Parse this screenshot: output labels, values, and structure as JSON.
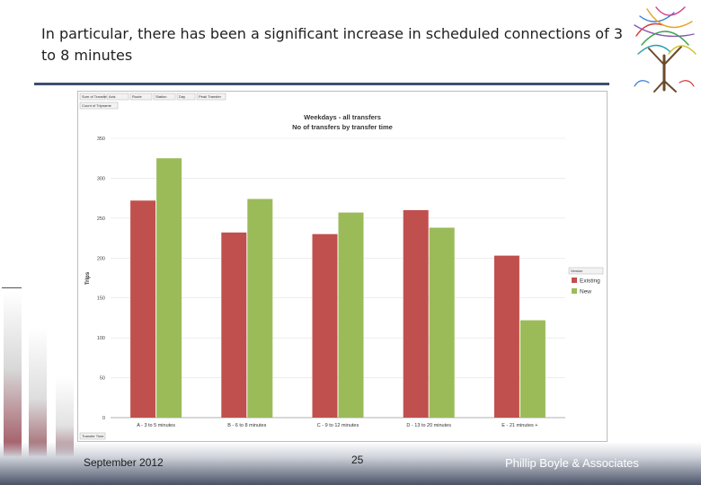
{
  "slide": {
    "title": "In particular, there has been a significant increase in scheduled connections of 3 to 8 minutes",
    "footer_date": "September 2012",
    "page_number": "25",
    "organization": "Phillip Boyle & Associates"
  },
  "pivot_controls": {
    "filters": [
      "Sum of TransferTime",
      "Axis",
      "Route",
      "Station",
      "Day",
      "Peak Transfer"
    ],
    "values_field": "Count of Tripname",
    "axis_field": "Transfer Time",
    "legend_field": "Version"
  },
  "colors": {
    "existing": "#c0504d",
    "new": "#9bbb59",
    "title_rule": "#3d4f6e"
  },
  "chart_data": {
    "type": "bar",
    "title": "Weekdays - all transfers",
    "subtitle": "No of transfers by transfer time",
    "xlabel": "",
    "ylabel": "Trips",
    "ylim": [
      0,
      350
    ],
    "yticks": [
      0,
      50,
      100,
      150,
      200,
      250,
      300,
      350
    ],
    "grid": true,
    "legend_position": "right",
    "categories": [
      "A - 3 to 5 minutes",
      "B - 6 to 8 minutes",
      "C - 9 to 12 minutes",
      "D - 13 to 20 minutes",
      "E - 21 minutes +"
    ],
    "series": [
      {
        "name": "Existing",
        "values": [
          272,
          232,
          230,
          260,
          203
        ]
      },
      {
        "name": "New",
        "values": [
          325,
          274,
          257,
          238,
          122
        ]
      }
    ]
  }
}
